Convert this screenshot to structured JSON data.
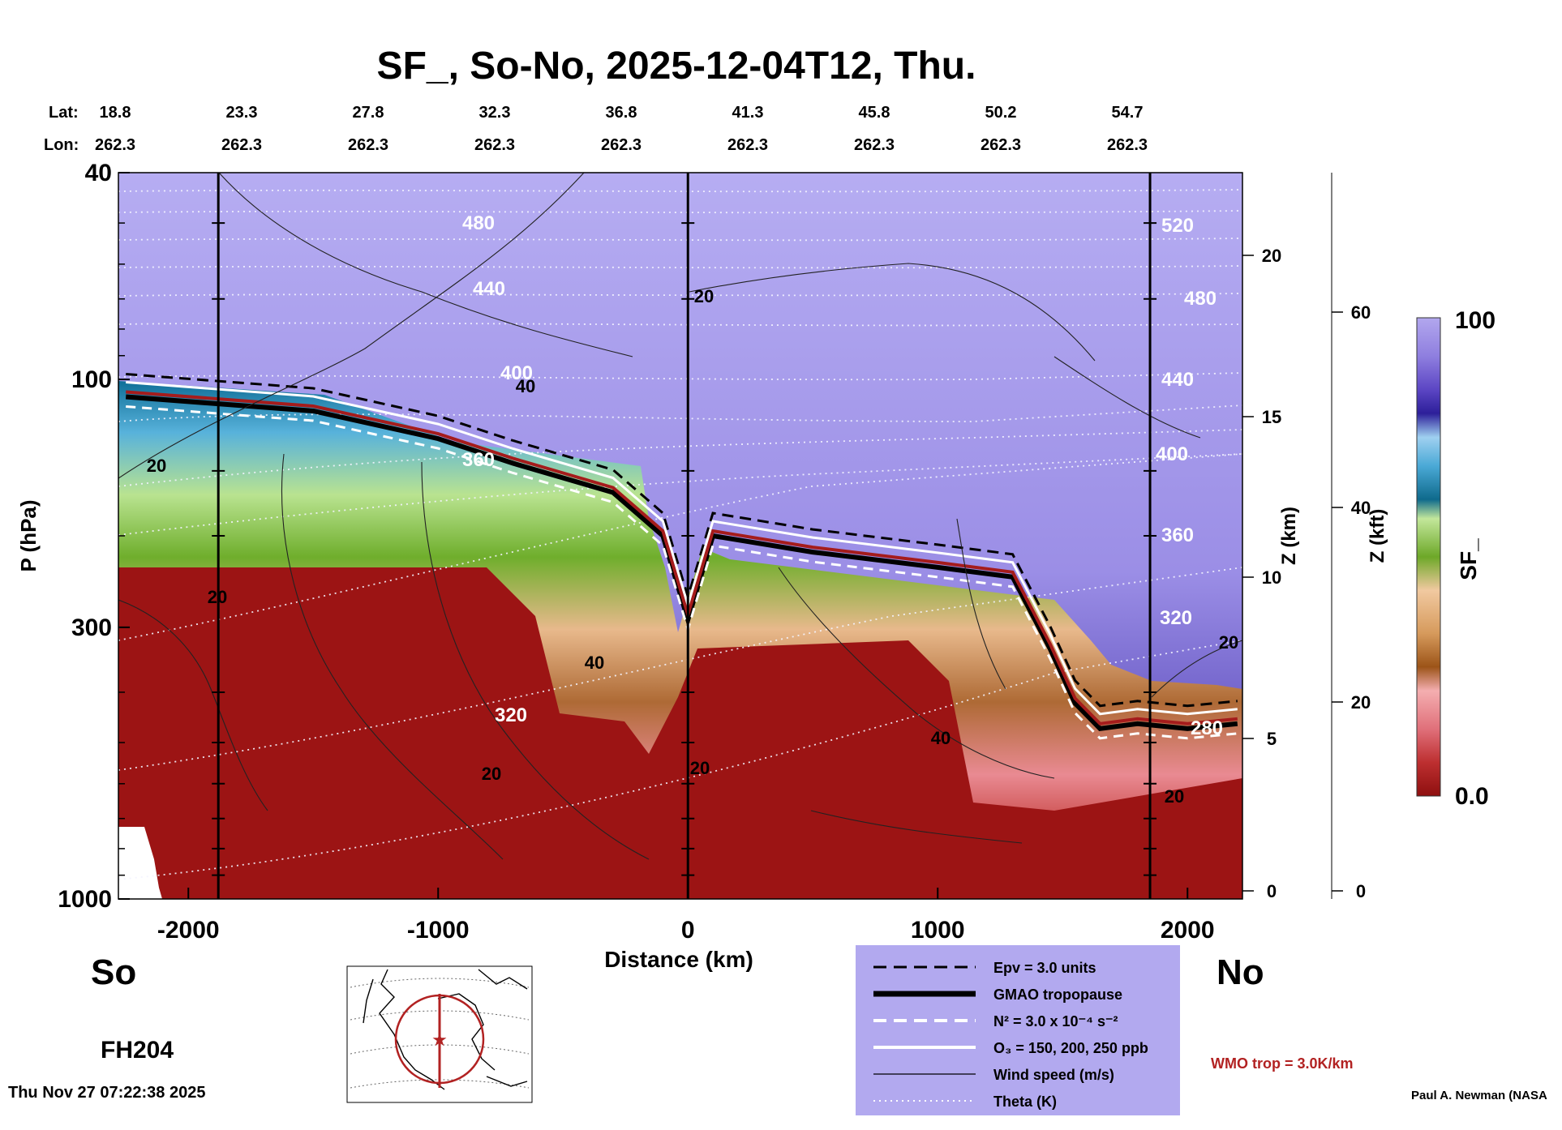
{
  "title": "SF_, So-No, 2025-12-04T12, Thu.",
  "coords": {
    "lat_label": "Lat:",
    "lon_label": "Lon:",
    "lats": [
      "18.8",
      "23.3",
      "27.8",
      "32.3",
      "36.8",
      "41.3",
      "45.8",
      "50.2",
      "54.7"
    ],
    "lons": [
      "262.3",
      "262.3",
      "262.3",
      "262.3",
      "262.3",
      "262.3",
      "262.3",
      "262.3",
      "262.3"
    ]
  },
  "axes": {
    "y_label": "P (hPa)",
    "y_ticks": [
      "40",
      "100",
      "300",
      "1000"
    ],
    "x_label": "Distance (km)",
    "x_ticks": [
      "-2000",
      "-1000",
      "0",
      "1000",
      "2000"
    ],
    "x_range": [
      -2280,
      2220
    ],
    "z_km_label": "Z (km)",
    "z_km_ticks": [
      "0",
      "5",
      "10",
      "15",
      "20"
    ],
    "z_kft_label": "Z (kft)",
    "z_kft_ticks": [
      "0",
      "20",
      "40",
      "60"
    ],
    "left_end": "So",
    "right_end": "No"
  },
  "colorbar": {
    "label": "SF_",
    "max": "100",
    "min": "0.0"
  },
  "forecast_hour": "FH204",
  "timestamp": "Thu Nov 27 07:22:38 2025",
  "credit": "Paul A. Newman (NASA",
  "wmo_label": "WMO trop = 3.0K/km",
  "legend": [
    {
      "style": "dashed-black",
      "label": "Epv = 3.0 units"
    },
    {
      "style": "thick-black",
      "label": "GMAO tropopause"
    },
    {
      "style": "dashed-white",
      "label": "N² = 3.0 x 10⁻⁴ s⁻²"
    },
    {
      "style": "solid-white",
      "label": "O₃ = 150, 200, 250 ppb"
    },
    {
      "style": "thin-black",
      "label": "Wind speed (m/s)"
    },
    {
      "style": "dotted-white",
      "label": "Theta (K)"
    }
  ],
  "chart_data": {
    "type": "heatmap",
    "title": "SF_, So-No, 2025-12-04T12, Thu.",
    "xlabel": "Distance (km)",
    "ylabel": "P (hPa)",
    "xlim": [
      -2280,
      2220
    ],
    "ylim": [
      1000,
      40
    ],
    "y_scale": "log",
    "colorbar_range": [
      0,
      100
    ],
    "tropopause_p_hPa": {
      "x": [
        -2250,
        -1500,
        -1000,
        -700,
        -300,
        -100,
        0,
        100,
        500,
        1000,
        1300,
        1450,
        1550,
        1650,
        1800,
        2000,
        2200
      ],
      "p": [
        108,
        115,
        130,
        145,
        165,
        200,
        290,
        200,
        215,
        230,
        240,
        330,
        420,
        470,
        460,
        470,
        460
      ]
    },
    "theta_labels_K": [
      "520",
      "480",
      "440",
      "400",
      "360",
      "320",
      "280"
    ],
    "wind_labels_ms": [
      "20",
      "40"
    ]
  }
}
